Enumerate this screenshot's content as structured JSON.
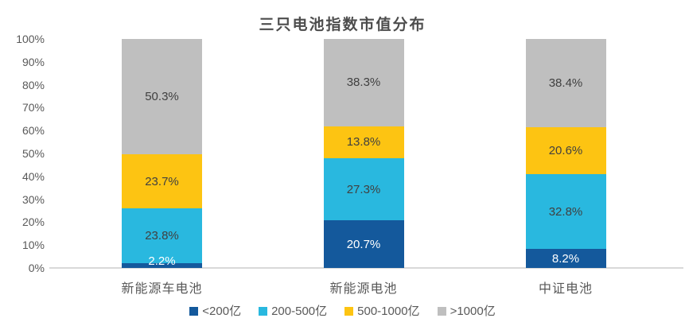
{
  "chart_data": {
    "type": "bar",
    "subtype": "stacked-percent-column",
    "title": "三只电池指数市值分布",
    "categories": [
      "新能源车电池",
      "新能源电池",
      "中证电池"
    ],
    "series": [
      {
        "name": "<200亿",
        "color": "#14599C",
        "label_color": "#ffffff",
        "values": [
          2.2,
          20.7,
          8.2
        ]
      },
      {
        "name": "200-500亿",
        "color": "#29B8DF",
        "label_color": "#404040",
        "values": [
          23.8,
          27.3,
          32.8
        ]
      },
      {
        "name": "500-1000亿",
        "color": "#FDC412",
        "label_color": "#404040",
        "values": [
          23.7,
          13.8,
          20.6
        ]
      },
      {
        "name": ">1000亿",
        "color": "#BFBFBF",
        "label_color": "#404040",
        "values": [
          50.3,
          38.3,
          38.4
        ]
      }
    ],
    "y_axis": {
      "ticks": [
        "0%",
        "10%",
        "20%",
        "30%",
        "40%",
        "50%",
        "60%",
        "70%",
        "80%",
        "90%",
        "100%"
      ],
      "min": 0,
      "max": 100
    },
    "data_label_format": "percent-one-decimal",
    "grid": false,
    "legend_position": "bottom",
    "axis_line_color": "#D9D9D9"
  }
}
